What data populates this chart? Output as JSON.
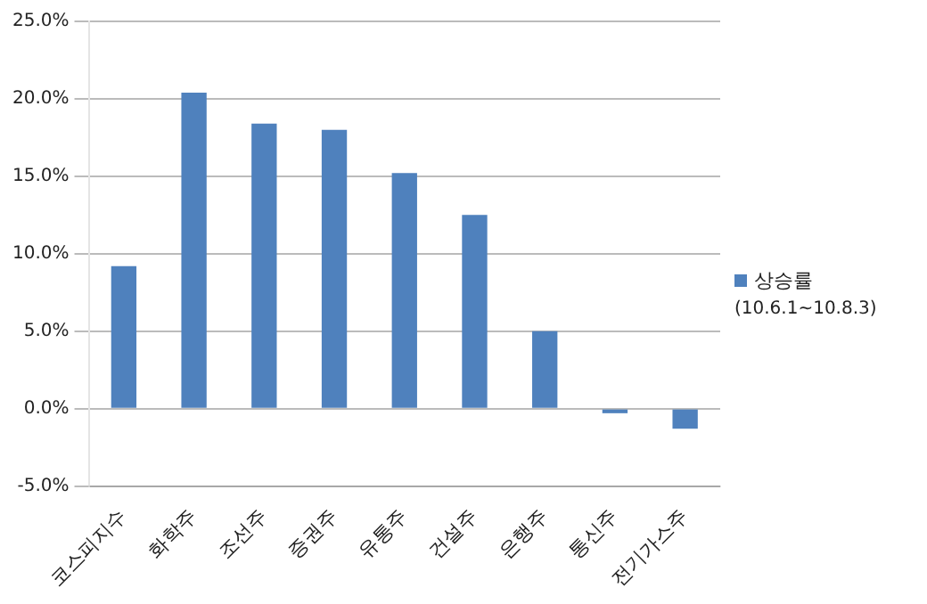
{
  "chart_data": {
    "type": "bar",
    "categories": [
      "코스피지수",
      "화학주",
      "조선주",
      "증권주",
      "유통주",
      "건설주",
      "은행주",
      "통신주",
      "전기가스주"
    ],
    "series": [
      {
        "name": "상승률",
        "color": "#4f81bd",
        "values": [
          9.2,
          20.4,
          18.4,
          18.0,
          15.2,
          12.5,
          5.0,
          -0.3,
          -1.3
        ]
      }
    ],
    "ylim": [
      -5,
      25
    ],
    "yticks": [
      {
        "value": -5,
        "label": "-5.0%"
      },
      {
        "value": 0,
        "label": "0.0%"
      },
      {
        "value": 5,
        "label": "5.0%"
      },
      {
        "value": 10,
        "label": "10.0%"
      },
      {
        "value": 15,
        "label": "15.0%"
      },
      {
        "value": 20,
        "label": "20.0%"
      },
      {
        "value": 25,
        "label": "25.0%"
      }
    ],
    "grid": "y",
    "legend": "right",
    "annotations": [
      "(10.6.1~10.8.3)"
    ]
  }
}
